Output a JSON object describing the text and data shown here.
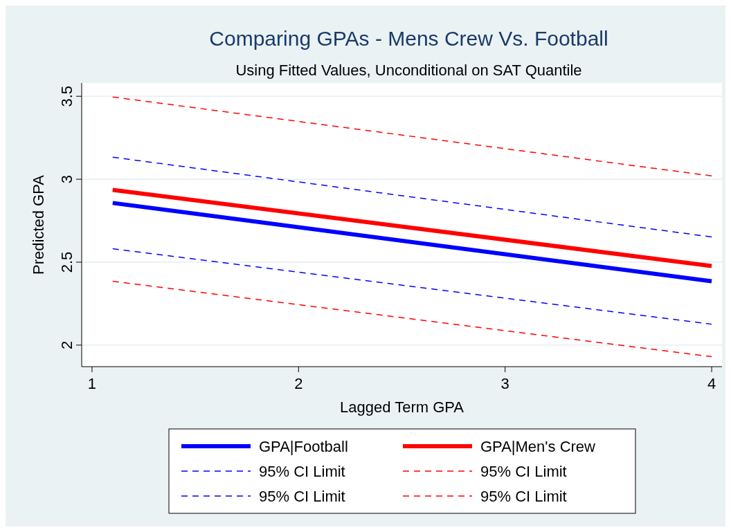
{
  "chart_data": {
    "type": "line",
    "title": "Comparing GPAs - Mens Crew Vs. Football",
    "subtitle": "Using Fitted Values, Unconditional on SAT Quantile",
    "xlabel": "Lagged Term GPA",
    "ylabel": "Predicted GPA",
    "x": [
      1.1,
      4
    ],
    "series": [
      {
        "name": "GPA|Football",
        "color": "#0000ff",
        "values": [
          2.857,
          2.385
        ],
        "line_style": "solid"
      },
      {
        "name": "GPA|Men's Crew",
        "color": "#ff0000",
        "values": [
          2.936,
          2.477
        ],
        "line_style": "solid"
      },
      {
        "name": "95% CI Limit",
        "color": "#0000ff",
        "values": [
          3.133,
          2.652
        ],
        "line_style": "dashed"
      },
      {
        "name": "95% CI Limit",
        "color": "#ff0000",
        "values": [
          3.496,
          3.02
        ],
        "line_style": "dashed"
      },
      {
        "name": "95% CI Limit",
        "color": "#0000ff",
        "values": [
          2.581,
          2.126
        ],
        "line_style": "dashed"
      },
      {
        "name": "95% CI Limit",
        "color": "#ff0000",
        "values": [
          2.385,
          1.93
        ],
        "line_style": "dashed"
      }
    ],
    "xlim": [
      0.95,
      4.05
    ],
    "xticks": [
      1,
      2,
      3,
      4
    ],
    "ylim": [
      1.87,
      3.58
    ],
    "yticks": [
      2,
      2.5,
      3,
      3.5
    ],
    "grid": "y",
    "legend": "bottom",
    "marker": "none"
  }
}
